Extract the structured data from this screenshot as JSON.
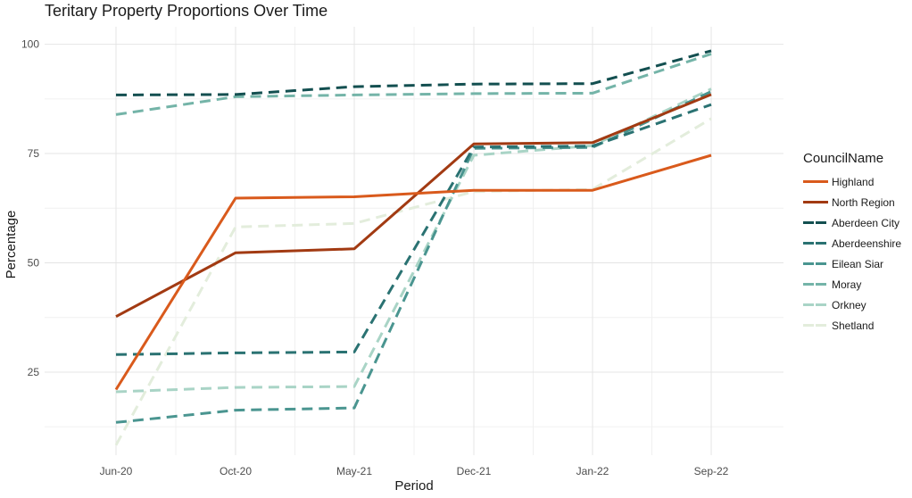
{
  "chart_data": {
    "type": "line",
    "title": "Teritary Property Proportions Over Time",
    "xlabel": "Period",
    "ylabel": "Percentage",
    "categories": [
      "Jun-20",
      "Oct-20",
      "May-21",
      "Dec-21",
      "Jan-22",
      "Sep-22"
    ],
    "yticks": [
      25,
      50,
      75,
      100
    ],
    "ylim": [
      6,
      104
    ],
    "grid": true,
    "legend_title": "CouncilName",
    "legend_position": "right",
    "series": [
      {
        "name": "Highland",
        "color": "#d95a1c",
        "dash": "solid",
        "values": [
          21,
          64.8,
          65.1,
          66.6,
          66.6,
          74.6
        ]
      },
      {
        "name": "North Region",
        "color": "#a23a12",
        "dash": "solid",
        "values": [
          37.7,
          52.3,
          53.2,
          77.2,
          77.5,
          88.5
        ]
      },
      {
        "name": "Aberdeen City",
        "color": "#134f50",
        "dash": "dashed",
        "values": [
          88.4,
          88.5,
          90.3,
          90.9,
          91,
          98.5
        ]
      },
      {
        "name": "Aberdeenshire",
        "color": "#2a7272",
        "dash": "dashed",
        "values": [
          29,
          29.4,
          29.6,
          76.5,
          76.7,
          86.2
        ]
      },
      {
        "name": "Eilean Siar",
        "color": "#4a9590",
        "dash": "dashed",
        "values": [
          13.5,
          16.3,
          16.8,
          76.2,
          76.4,
          89.2
        ]
      },
      {
        "name": "Moray",
        "color": "#74b4a8",
        "dash": "dashed",
        "values": [
          83.9,
          88,
          88.4,
          88.7,
          88.8,
          97.8
        ]
      },
      {
        "name": "Orkney",
        "color": "#a9d4c6",
        "dash": "dashed",
        "values": [
          20.5,
          21.5,
          21.7,
          74.6,
          76.8,
          89.8
        ]
      },
      {
        "name": "Shetland",
        "color": "#e3eddc",
        "dash": "dashed",
        "values": [
          8.3,
          58.2,
          59,
          66.3,
          66.8,
          83
        ]
      }
    ]
  }
}
